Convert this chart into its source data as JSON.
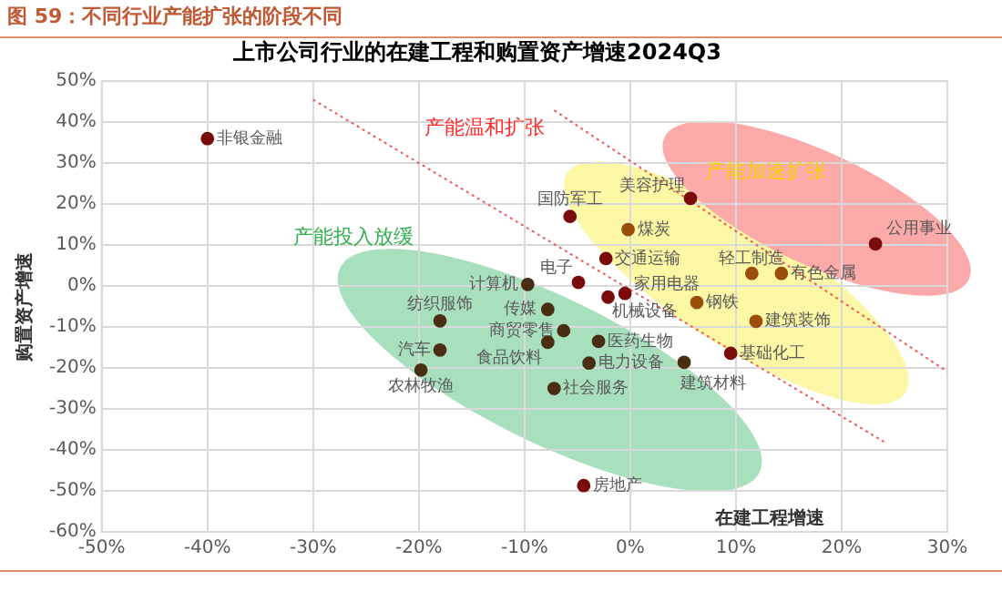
{
  "chart_data": {
    "type": "scatter",
    "title": "图 59：不同行业产能扩张的阶段不同",
    "subtitle": "上市公司行业的在建工程和购置资产增速2024Q3",
    "xlabel": "在建工程增速",
    "ylabel": "购置资产增速",
    "xlim": [
      -50,
      30
    ],
    "xticks": [
      {
        "value": -50,
        "label": "-50%"
      },
      {
        "value": -40,
        "label": "-40%"
      },
      {
        "value": -30,
        "label": "-30%"
      },
      {
        "value": -20,
        "label": "-20%"
      },
      {
        "value": -10,
        "label": "-10%"
      },
      {
        "value": 0,
        "label": "0%"
      },
      {
        "value": 10,
        "label": "10%"
      },
      {
        "value": 20,
        "label": "20%"
      },
      {
        "value": 30,
        "label": "30%"
      }
    ],
    "ylim": [
      -60,
      50
    ],
    "yticks": [
      {
        "value": -60,
        "label": "-60%"
      },
      {
        "value": -50,
        "label": "-50%"
      },
      {
        "value": -40,
        "label": "-40%"
      },
      {
        "value": -30,
        "label": "-30%"
      },
      {
        "value": -20,
        "label": "-20%"
      },
      {
        "value": -10,
        "label": "-10%"
      },
      {
        "value": 0,
        "label": "0%"
      },
      {
        "value": 10,
        "label": "10%"
      },
      {
        "value": 20,
        "label": "20%"
      },
      {
        "value": 30,
        "label": "30%"
      },
      {
        "value": 40,
        "label": "40%"
      },
      {
        "value": 50,
        "label": "50%"
      }
    ],
    "grid": true,
    "legend": false,
    "marker": "circle",
    "annotations": [
      "产能温和扩张",
      "产能投入放缓",
      "产能加速扩张"
    ],
    "series": [
      {
        "name": "非银金融",
        "color": "#7a0c0c",
        "x": [
          -40
        ],
        "values": [
          36
        ]
      },
      {
        "name": "美容护理",
        "color": "#7a0c0c",
        "x": [
          5.7
        ],
        "values": [
          21.4
        ]
      },
      {
        "name": "国防军工",
        "color": "#7a0c0c",
        "x": [
          -5.7
        ],
        "values": [
          17
        ]
      },
      {
        "name": "煤炭",
        "color": "#9a4e0a",
        "x": [
          -0.2
        ],
        "values": [
          13.8
        ]
      },
      {
        "name": "公用事业",
        "color": "#7a0c0c",
        "x": [
          23.2
        ],
        "values": [
          10.3
        ]
      },
      {
        "name": "交通运输",
        "color": "#7a0c0c",
        "x": [
          -2.3
        ],
        "values": [
          6.7
        ]
      },
      {
        "name": "电子",
        "color": "#7a0c0c",
        "x": [
          -4.9
        ],
        "values": [
          0.9
        ]
      },
      {
        "name": "计算机",
        "color": "#4a2e14",
        "x": [
          -9.7
        ],
        "values": [
          0.4
        ]
      },
      {
        "name": "轻工制造",
        "color": "#9a4e0a",
        "x": [
          11.5
        ],
        "values": [
          3.1
        ]
      },
      {
        "name": "有色金属",
        "color": "#9a4e0a",
        "x": [
          14.3
        ],
        "values": [
          3.1
        ]
      },
      {
        "name": "家用电器",
        "color": "#7a0c0c",
        "x": [
          -0.5
        ],
        "values": [
          -1.8
        ]
      },
      {
        "name": "机械设备",
        "color": "#7a0c0c",
        "x": [
          -2.1
        ],
        "values": [
          -2.7
        ]
      },
      {
        "name": "钢铁",
        "color": "#9a4e0a",
        "x": [
          6.3
        ],
        "values": [
          -4
        ]
      },
      {
        "name": "建筑装饰",
        "color": "#9a4e0a",
        "x": [
          11.9
        ],
        "values": [
          -8.6
        ]
      },
      {
        "name": "传媒",
        "color": "#4a2e14",
        "x": [
          -7.8
        ],
        "values": [
          -5.7
        ]
      },
      {
        "name": "商贸零售",
        "color": "#4a2e14",
        "x": [
          -6.3
        ],
        "values": [
          -10.9
        ]
      },
      {
        "name": "食品饮料",
        "color": "#4a2e14",
        "x": [
          -7.8
        ],
        "values": [
          -13.7
        ]
      },
      {
        "name": "医药生物",
        "color": "#4a2e14",
        "x": [
          -3
        ],
        "values": [
          -13.5
        ]
      },
      {
        "name": "基础化工",
        "color": "#7a0c0c",
        "x": [
          9.5
        ],
        "values": [
          -16.4
        ]
      },
      {
        "name": "电力设备",
        "color": "#4a2e14",
        "x": [
          -3.9
        ],
        "values": [
          -18.8
        ]
      },
      {
        "name": "建筑材料",
        "color": "#4a2e14",
        "x": [
          5.1
        ],
        "values": [
          -18.6
        ]
      },
      {
        "name": "社会服务",
        "color": "#4a2e14",
        "x": [
          -7.2
        ],
        "values": [
          -25
        ]
      },
      {
        "name": "房地产",
        "color": "#7a0c0c",
        "x": [
          -4.4
        ],
        "values": [
          -48.7
        ]
      },
      {
        "name": "纺织服饰",
        "color": "#4a2e14",
        "x": [
          -18
        ],
        "values": [
          -8.5
        ]
      },
      {
        "name": "汽车",
        "color": "#4a2e14",
        "x": [
          -18
        ],
        "values": [
          -15.6
        ]
      },
      {
        "name": "农林牧渔",
        "color": "#4a2e14",
        "x": [
          -19.8
        ],
        "values": [
          -20.5
        ]
      },
      {
        "type": "line",
        "color": "#f05a5a",
        "line_style": "dotted",
        "marker": "none",
        "x": [
          -7.2,
          30
        ],
        "values": [
          42.9,
          -20.9
        ]
      },
      {
        "type": "line",
        "color": "#f05a5a",
        "line_style": "dotted",
        "marker": "none",
        "x": [
          -30,
          24
        ],
        "values": [
          45.5,
          -38
        ]
      }
    ]
  }
}
